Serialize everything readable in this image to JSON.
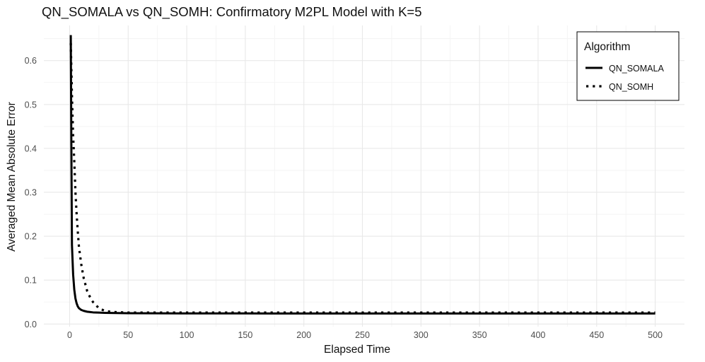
{
  "chart_data": {
    "type": "line",
    "title": "QN_SOMALA vs QN_SOMH: Confirmatory M2PL Model with K=5",
    "xlabel": "Elapsed Time",
    "ylabel": "Averaged Mean Absolute Error",
    "xlim": [
      -22,
      525
    ],
    "ylim": [
      -0.006,
      0.68
    ],
    "xticks": [
      0,
      50,
      100,
      150,
      200,
      250,
      300,
      350,
      400,
      450,
      500
    ],
    "yticks": [
      0.0,
      0.1,
      0.2,
      0.3,
      0.4,
      0.5,
      0.6
    ],
    "ytick_labels": [
      "0.0",
      "0.1",
      "0.2",
      "0.3",
      "0.4",
      "0.5",
      "0.6"
    ],
    "grid": true,
    "legend": {
      "title": "Algorithm",
      "position": "top-right",
      "entries": [
        {
          "label": "QN_SOMALA",
          "style": "solid"
        },
        {
          "label": "QN_SOMH",
          "style": "dotted"
        }
      ]
    },
    "series": [
      {
        "name": "QN_SOMALA",
        "style": "solid",
        "color": "#000000",
        "x": [
          1,
          1.5,
          2,
          3,
          4,
          5,
          6,
          7,
          8,
          10,
          12,
          15,
          20,
          25,
          30,
          40,
          50,
          75,
          100,
          150,
          200,
          250,
          300,
          350,
          400,
          450,
          500
        ],
        "y": [
          0.658,
          0.4,
          0.18,
          0.113,
          0.078,
          0.058,
          0.047,
          0.04,
          0.036,
          0.032,
          0.03,
          0.028,
          0.0265,
          0.026,
          0.0255,
          0.025,
          0.0247,
          0.0244,
          0.0242,
          0.0241,
          0.024,
          0.024,
          0.024,
          0.024,
          0.024,
          0.024,
          0.024
        ]
      },
      {
        "name": "QN_SOMH",
        "style": "dotted",
        "color": "#000000",
        "x": [
          1,
          2,
          3,
          4,
          5,
          6,
          7,
          8,
          10,
          12,
          15,
          18,
          20,
          25,
          30,
          35,
          40,
          50,
          75,
          100,
          150,
          200,
          250,
          300,
          350,
          400,
          450,
          500
        ],
        "y": [
          0.64,
          0.52,
          0.43,
          0.37,
          0.3,
          0.25,
          0.21,
          0.175,
          0.135,
          0.105,
          0.075,
          0.058,
          0.05,
          0.036,
          0.03,
          0.028,
          0.027,
          0.026,
          0.026,
          0.026,
          0.026,
          0.026,
          0.026,
          0.026,
          0.026,
          0.026,
          0.026,
          0.026
        ]
      }
    ]
  }
}
